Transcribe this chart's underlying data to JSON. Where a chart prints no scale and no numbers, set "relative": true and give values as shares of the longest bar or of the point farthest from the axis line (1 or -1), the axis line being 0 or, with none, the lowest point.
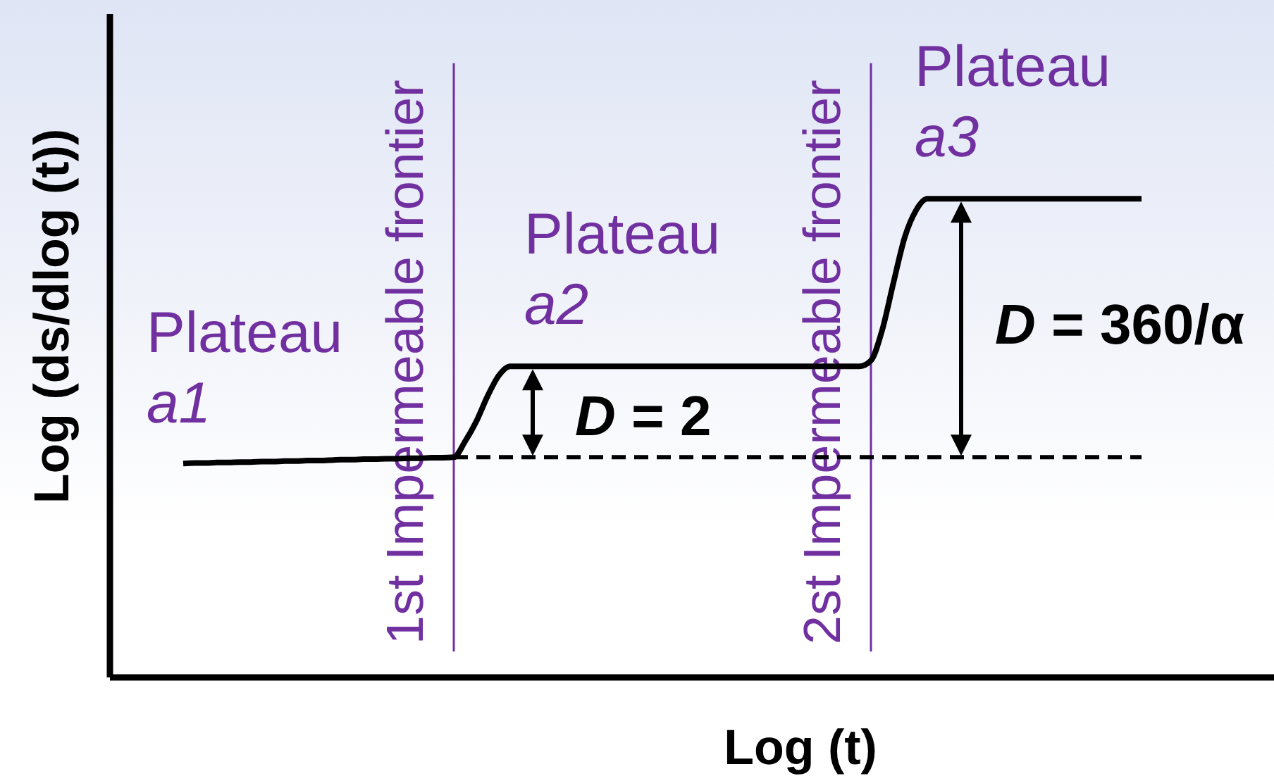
{
  "chart_data": {
    "type": "line",
    "relative": true,
    "xlabel": "Log (t)",
    "ylabel": "Log (ds/dlog (t))",
    "tick_labels": false,
    "marker": "none",
    "categories": [
      null,
      null,
      null,
      null,
      null,
      null,
      null,
      null,
      null,
      null,
      null,
      null,
      null,
      null,
      null,
      null,
      null,
      null,
      null,
      null,
      null,
      null,
      null,
      null,
      null,
      null,
      null,
      null,
      null,
      null,
      null,
      null,
      null,
      null,
      null,
      null,
      null,
      null,
      null,
      null,
      null,
      null,
      null,
      null,
      null,
      null,
      null,
      null,
      null,
      null,
      null,
      null,
      null,
      null,
      null,
      null,
      null,
      null,
      null,
      null,
      null,
      null,
      null,
      null,
      null,
      null,
      null,
      null,
      null,
      null,
      null,
      null,
      null,
      null,
      null,
      null,
      null,
      null,
      null,
      null,
      null,
      null,
      null,
      null,
      null,
      null
    ],
    "series": [
      {
        "color": "#000000",
        "line_style": "solid",
        "values": [
          0.447,
          0.448,
          0.448,
          0.449,
          0.449,
          0.45,
          0.45,
          0.451,
          0.451,
          0.452,
          0.452,
          0.453,
          0.453,
          0.454,
          0.455,
          0.455,
          0.456,
          0.456,
          0.457,
          0.457,
          0.458,
          0.458,
          0.459,
          0.459,
          0.46,
          0.493,
          0.535,
          0.588,
          0.631,
          0.65,
          0.65,
          0.65,
          0.65,
          0.65,
          0.65,
          0.65,
          0.65,
          0.65,
          0.65,
          0.65,
          0.65,
          0.65,
          0.65,
          0.65,
          0.65,
          0.65,
          0.65,
          0.65,
          0.65,
          0.65,
          0.65,
          0.65,
          0.65,
          0.65,
          0.65,
          0.65,
          0.65,
          0.65,
          0.65,
          0.65,
          0.65,
          0.662,
          0.726,
          0.825,
          0.92,
          0.976,
          1,
          1,
          1,
          1,
          1,
          1,
          1,
          1,
          1,
          1,
          1,
          1,
          1,
          1,
          1,
          1,
          1,
          1,
          1,
          1
        ]
      },
      {
        "color": "#000000",
        "line_style": "dashed",
        "values": [
          null,
          null,
          null,
          null,
          null,
          null,
          null,
          null,
          null,
          null,
          null,
          null,
          null,
          null,
          null,
          null,
          null,
          null,
          null,
          null,
          null,
          null,
          null,
          null,
          0.46,
          0.46,
          0.46,
          0.46,
          0.46,
          0.46,
          0.46,
          0.46,
          0.46,
          0.46,
          0.46,
          0.46,
          0.46,
          0.46,
          0.46,
          0.46,
          0.46,
          0.46,
          0.46,
          0.46,
          0.46,
          0.46,
          0.46,
          0.46,
          0.46,
          0.46,
          0.46,
          0.46,
          0.46,
          0.46,
          0.46,
          0.46,
          0.46,
          0.46,
          0.46,
          0.46,
          0.46,
          0.46,
          0.46,
          0.46,
          0.46,
          0.46,
          0.46,
          0.46,
          0.46,
          0.46,
          0.46,
          0.46,
          0.46,
          0.46,
          0.46,
          0.46,
          0.46,
          0.46,
          0.46,
          0.46,
          0.46,
          0.46,
          0.46,
          0.46,
          0.46,
          0.46
        ]
      }
    ],
    "ref_lines": [
      {
        "axis": "x",
        "label": "1st Impermeable frontier",
        "color": "#7030a0"
      },
      {
        "axis": "x",
        "label": "2st Impermeable frontier",
        "color": "#7030a0"
      }
    ],
    "annotations": [
      "Plateau a1",
      "Plateau a2",
      "Plateau a3",
      "D = 2",
      "D = 360/α"
    ]
  }
}
